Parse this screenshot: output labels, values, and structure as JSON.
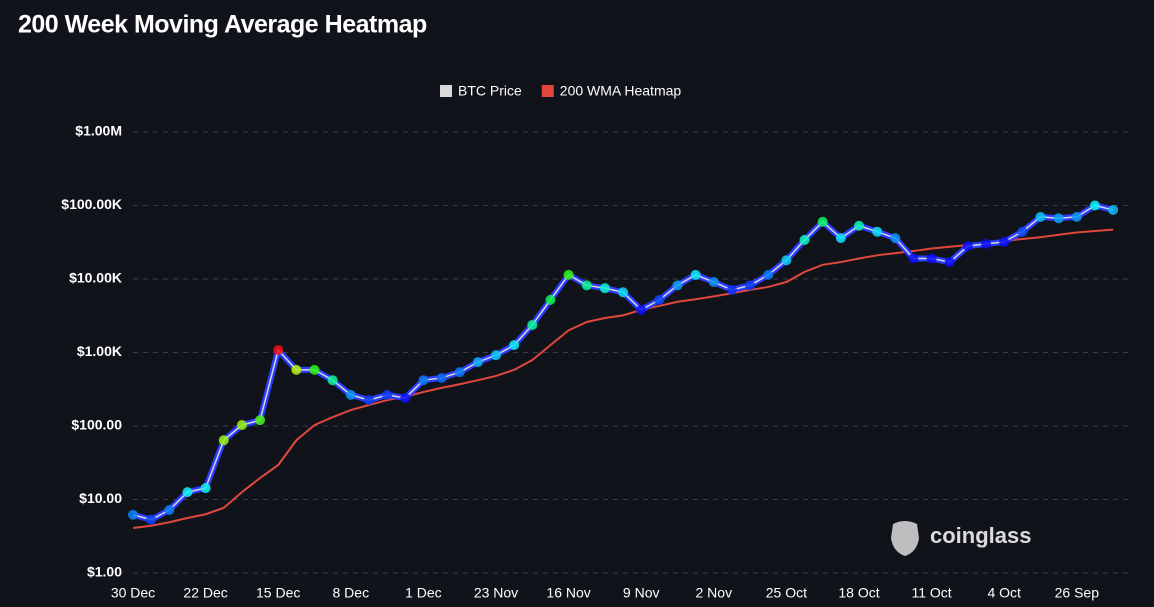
{
  "chart_data": {
    "type": "line",
    "title": "200 Week Moving Average Heatmap",
    "categories": [
      "30 Dec",
      null,
      null,
      null,
      "22 Dec",
      null,
      null,
      null,
      "15 Dec",
      null,
      null,
      null,
      "8 Dec",
      null,
      null,
      null,
      "1 Dec",
      null,
      null,
      null,
      "23 Nov",
      null,
      null,
      null,
      "16 Nov",
      null,
      null,
      null,
      "9 Nov",
      null,
      null,
      null,
      "2 Nov",
      null,
      null,
      null,
      "25 Oct",
      null,
      null,
      null,
      "18 Oct",
      null,
      null,
      null,
      "11 Oct",
      null,
      null,
      null,
      "4 Oct",
      null,
      null,
      null,
      "26 Sep",
      null,
      null
    ],
    "series": [
      {
        "name": "BTC Price",
        "color": "#d9d9d9",
        "values": [
          6.2,
          5.3,
          7.2,
          12.6,
          14.3,
          64,
          103,
          120,
          1080,
          580,
          580,
          420,
          265,
          225,
          265,
          240,
          420,
          450,
          540,
          740,
          920,
          1260,
          2370,
          5200,
          11400,
          8200,
          7500,
          6600,
          3800,
          5200,
          8200,
          11400,
          9100,
          7100,
          8200,
          11400,
          18000,
          34000,
          60000,
          36000,
          53000,
          44000,
          36000,
          19000,
          19000,
          17000,
          28000,
          30000,
          32000,
          44000,
          70000,
          67000,
          70000,
          100000,
          87000
        ]
      },
      {
        "name": "200 WMA Heatmap",
        "color": "#e0483e",
        "values": [
          4.1,
          4.4,
          4.9,
          5.6,
          6.3,
          7.7,
          12.6,
          19.6,
          29.5,
          64,
          103,
          132,
          165,
          193,
          225,
          250,
          290,
          330,
          370,
          420,
          480,
          580,
          790,
          1260,
          2000,
          2600,
          2950,
          3200,
          3800,
          4300,
          4900,
          5300,
          5800,
          6400,
          7100,
          7800,
          9100,
          12500,
          15600,
          17000,
          19000,
          21000,
          22500,
          24000,
          26000,
          27500,
          29000,
          31000,
          33000,
          35000,
          37000,
          40000,
          43000,
          45000,
          47000
        ]
      }
    ],
    "log_scale": true,
    "ylim": [
      1,
      1000000
    ],
    "yticks": [
      {
        "value": 1,
        "label": "$1.00"
      },
      {
        "value": 10,
        "label": "$10.00"
      },
      {
        "value": 100,
        "label": "$100.00"
      },
      {
        "value": 1000,
        "label": "$1.00K"
      },
      {
        "value": 10000,
        "label": "$10.00K"
      },
      {
        "value": 100000,
        "label": "$100.00K"
      },
      {
        "value": 1000000,
        "label": "$1.00M"
      }
    ],
    "grid": true,
    "legend": "top",
    "watermark": "coinglass"
  }
}
